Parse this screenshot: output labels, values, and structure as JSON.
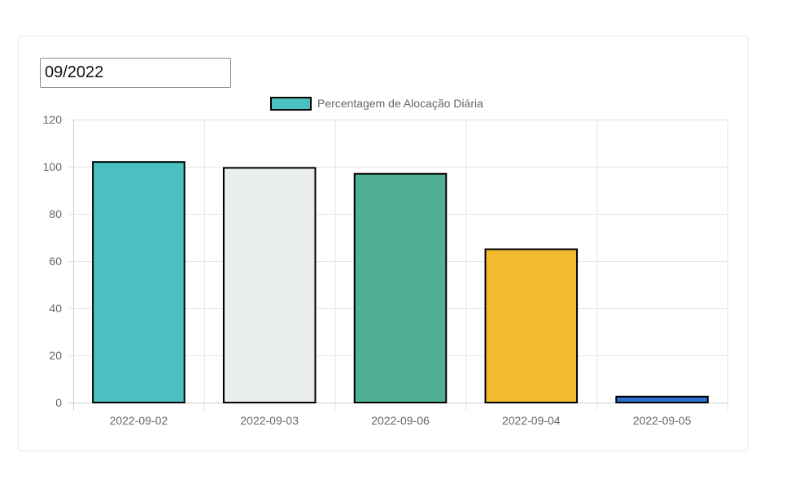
{
  "filter": {
    "month_value": "09/2022"
  },
  "chart_data": {
    "type": "bar",
    "categories": [
      "2022-09-02",
      "2022-09-03",
      "2022-09-06",
      "2022-09-04",
      "2022-09-05"
    ],
    "series": [
      {
        "name": "Percentagem de Alocação Diária",
        "values": [
          102,
          99.5,
          97,
          65,
          2.5
        ],
        "colors": [
          "#4bc0c0",
          "#e9eded",
          "#50af95",
          "#f3ba2f",
          "#2a71d0"
        ],
        "border_color": "#000000"
      }
    ],
    "legend_swatch_color": "#4bc0c0",
    "ylim": [
      0,
      120
    ],
    "y_ticks": [
      0,
      20,
      40,
      60,
      80,
      100,
      120
    ],
    "grid": true,
    "legend_position": "top"
  }
}
